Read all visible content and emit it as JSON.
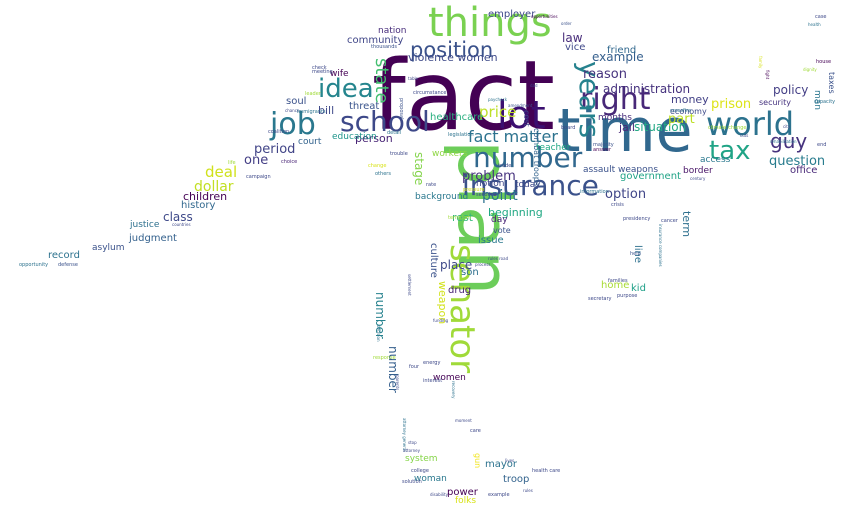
{
  "words": [
    {
      "text": "fact",
      "color": "#440154",
      "rot": 0
    },
    {
      "text": "time",
      "color": "#31688e",
      "rot": 0
    },
    {
      "text": "plan",
      "color": "#6ccd5a",
      "rot": 90
    },
    {
      "text": "things",
      "color": "#7ad151",
      "rot": 0
    },
    {
      "text": "insurance",
      "color": "#3b528b",
      "rot": 0
    },
    {
      "text": "world",
      "color": "#2c728e",
      "rot": 0
    },
    {
      "text": "right",
      "color": "#482878",
      "rot": 0
    },
    {
      "text": "number",
      "color": "#31688e",
      "rot": 0
    },
    {
      "text": "lot",
      "color": "#3b0f70",
      "rot": 0
    },
    {
      "text": "school",
      "color": "#3e4989",
      "rot": 0
    },
    {
      "text": "job",
      "color": "#2a788e",
      "rot": 0
    },
    {
      "text": "years",
      "color": "#26828e",
      "rot": 90
    },
    {
      "text": "tax",
      "color": "#20a486",
      "rot": 0
    },
    {
      "text": "position",
      "color": "#3b528b",
      "rot": 0
    },
    {
      "text": "idea",
      "color": "#25858e",
      "rot": 0
    },
    {
      "text": "senator",
      "color": "#a0da39",
      "rot": 90
    },
    {
      "text": "guy",
      "color": "#46337e",
      "rot": 0
    },
    {
      "text": "state",
      "color": "#44bf70",
      "rot": 90
    },
    {
      "text": "fact matter",
      "color": "#2c728e",
      "rot": 0
    },
    {
      "text": "reason",
      "color": "#46337e",
      "rot": 0
    },
    {
      "text": "deal",
      "color": "#d0e11c",
      "rot": 0
    },
    {
      "text": "dollar",
      "color": "#c2df23",
      "rot": 0
    },
    {
      "text": "place",
      "color": "#3e4989",
      "rot": 0
    },
    {
      "text": "point",
      "color": "#2c728e",
      "rot": 0
    },
    {
      "text": "problem",
      "color": "#46327e",
      "rot": 0
    },
    {
      "text": "option",
      "color": "#404688",
      "rot": 0
    },
    {
      "text": "policy",
      "color": "#433e85",
      "rot": 0
    },
    {
      "text": "question",
      "color": "#287c8e",
      "rot": 0
    },
    {
      "text": "period",
      "color": "#414487",
      "rot": 0
    },
    {
      "text": "class",
      "color": "#3e4989",
      "rot": 0
    },
    {
      "text": "price",
      "color": "#bddf26",
      "rot": 0
    },
    {
      "text": "example",
      "color": "#355f8d",
      "rot": 0
    },
    {
      "text": "situation",
      "color": "#22a884",
      "rot": 0
    },
    {
      "text": "children",
      "color": "#440154",
      "rot": 0
    },
    {
      "text": "one",
      "color": "#433e85",
      "rot": 0
    },
    {
      "text": "person",
      "color": "#482475",
      "rot": 0
    },
    {
      "text": "bill",
      "color": "#3e4989",
      "rot": 0
    },
    {
      "text": "law",
      "color": "#472c7a",
      "rot": 0
    },
    {
      "text": "money",
      "color": "#424086",
      "rot": 0
    },
    {
      "text": "prison",
      "color": "#dde318",
      "rot": 0
    },
    {
      "text": "beginning",
      "color": "#22a884",
      "rot": 0
    },
    {
      "text": "term",
      "color": "#2e6f8e",
      "rot": 90
    },
    {
      "text": "administration",
      "color": "#46327e",
      "rot": 0
    },
    {
      "text": "part",
      "color": "#bddf26",
      "rot": 0
    },
    {
      "text": "history",
      "color": "#31688e",
      "rot": 0
    },
    {
      "text": "office",
      "color": "#482878",
      "rot": 0
    },
    {
      "text": "judgment",
      "color": "#34618d",
      "rot": 0
    },
    {
      "text": "record",
      "color": "#2c728e",
      "rot": 0
    },
    {
      "text": "number",
      "color": "#355f8d",
      "rot": 90
    },
    {
      "text": "number",
      "color": "#26828e",
      "rot": 90
    },
    {
      "text": "community",
      "color": "#404688",
      "rot": 0
    },
    {
      "text": "nation",
      "color": "#472d7b",
      "rot": 0
    },
    {
      "text": "violence women",
      "color": "#3e4a89",
      "rot": 0
    },
    {
      "text": "combat troops",
      "color": "#33638d",
      "rot": 90
    },
    {
      "text": "stage",
      "color": "#84d44b",
      "rot": 90
    },
    {
      "text": "jail",
      "color": "#482677",
      "rot": 0
    },
    {
      "text": "friend",
      "color": "#31688e",
      "rot": 0
    },
    {
      "text": "vice",
      "color": "#3f4889",
      "rot": 0
    },
    {
      "text": "healthcare",
      "color": "#29af7f",
      "rot": 0
    },
    {
      "text": "court",
      "color": "#33638d",
      "rot": 0
    },
    {
      "text": "education",
      "color": "#1f958b",
      "rot": 0
    },
    {
      "text": "threat",
      "color": "#3a548c",
      "rot": 0
    },
    {
      "text": "wife",
      "color": "#440154",
      "rot": 0
    },
    {
      "text": "soul",
      "color": "#3b528b",
      "rot": 0
    },
    {
      "text": "employer",
      "color": "#3e4989",
      "rot": 0
    },
    {
      "text": "man",
      "color": "#2a768e",
      "rot": 90
    },
    {
      "text": "taxes",
      "color": "#3b528b",
      "rot": 90
    },
    {
      "text": "security",
      "color": "#46337f",
      "rot": 0
    },
    {
      "text": "economy",
      "color": "#3e4a89",
      "rot": 0
    },
    {
      "text": "access",
      "color": "#2a788e",
      "rot": 0
    },
    {
      "text": "border",
      "color": "#481467",
      "rot": 0
    },
    {
      "text": "government",
      "color": "#20a386",
      "rot": 0
    },
    {
      "text": "kid",
      "color": "#1fa088",
      "rot": 0
    },
    {
      "text": "home",
      "color": "#a8db34",
      "rot": 0
    },
    {
      "text": "rest",
      "color": "#35b779",
      "rot": 0
    },
    {
      "text": "day",
      "color": "#482475",
      "rot": 0
    },
    {
      "text": "vote",
      "color": "#3b528b",
      "rot": 0
    },
    {
      "text": "issue",
      "color": "#2a788e",
      "rot": 0
    },
    {
      "text": "son",
      "color": "#2d708e",
      "rot": 0
    },
    {
      "text": "drug",
      "color": "#482475",
      "rot": 0
    },
    {
      "text": "weapon",
      "color": "#d2e21b",
      "rot": 90
    },
    {
      "text": "culture",
      "color": "#3b528b",
      "rot": 90
    },
    {
      "text": "line",
      "color": "#2d708e",
      "rot": 90
    },
    {
      "text": "justice",
      "color": "#2d708e",
      "rot": 0
    },
    {
      "text": "asylum",
      "color": "#3b528b",
      "rot": 0
    },
    {
      "text": "background",
      "color": "#2a788e",
      "rot": 0
    },
    {
      "text": "notion",
      "color": "#3e4989",
      "rot": 0
    },
    {
      "text": "today",
      "color": "#3e4989",
      "rot": 0
    },
    {
      "text": "months",
      "color": "#472c7a",
      "rot": 0
    },
    {
      "text": "cost",
      "color": "#3f4788",
      "rot": 90
    },
    {
      "text": "workers",
      "color": "#8fd744",
      "rot": 0
    },
    {
      "text": "teacher",
      "color": "#22a884",
      "rot": 0
    },
    {
      "text": "assault weapons",
      "color": "#3b528b",
      "rot": 0
    },
    {
      "text": "women",
      "color": "#440154",
      "rot": 0
    },
    {
      "text": "system",
      "color": "#86d549",
      "rot": 0
    },
    {
      "text": "mayor",
      "color": "#2c728e",
      "rot": 0
    },
    {
      "text": "woman",
      "color": "#2a788e",
      "rot": 0
    },
    {
      "text": "troop",
      "color": "#33638d",
      "rot": 0
    },
    {
      "text": "power",
      "color": "#440154",
      "rot": 0
    },
    {
      "text": "folks",
      "color": "#d8e219",
      "rot": 0
    },
    {
      "text": "gun",
      "color": "#f1e51d",
      "rot": 90
    },
    {
      "text": "opportunity",
      "color": "#2c728e",
      "rot": 0
    },
    {
      "text": "defense",
      "color": "#3b528b",
      "rot": 0
    },
    {
      "text": "countries",
      "color": "#3e4989",
      "rot": 0
    },
    {
      "text": "campaign",
      "color": "#3e4989",
      "rot": 0
    },
    {
      "text": "life",
      "color": "#a0da39",
      "rot": 0
    },
    {
      "text": "choice",
      "color": "#482475",
      "rot": 0
    },
    {
      "text": "chance",
      "color": "#3e4989",
      "rot": 0
    },
    {
      "text": "coalition",
      "color": "#3e4989",
      "rot": 0
    },
    {
      "text": "immigrants",
      "color": "#2c728e",
      "rot": 0
    },
    {
      "text": "leader",
      "color": "#a0da39",
      "rot": 0
    },
    {
      "text": "check",
      "color": "#3e4989",
      "rot": 0
    },
    {
      "text": "meeting",
      "color": "#3e4989",
      "rot": 0
    },
    {
      "text": "thousands",
      "color": "#3b528b",
      "rot": 0
    },
    {
      "text": "circumstance",
      "color": "#3e4989",
      "rot": 0
    },
    {
      "text": "table",
      "color": "#3e4989",
      "rot": 0
    },
    {
      "text": "proposal",
      "color": "#3b528b",
      "rot": 90
    },
    {
      "text": "detail",
      "color": "#2c728e",
      "rot": 0
    },
    {
      "text": "legislation",
      "color": "#2c728e",
      "rot": 0
    },
    {
      "text": "trouble",
      "color": "#3e4989",
      "rot": 0
    },
    {
      "text": "change",
      "color": "#d8e219",
      "rot": 0
    },
    {
      "text": "others",
      "color": "#2c728e",
      "rot": 0
    },
    {
      "text": "rate",
      "color": "#3e4989",
      "rot": 0
    },
    {
      "text": "terrorism",
      "color": "#a0da39",
      "rot": 0
    },
    {
      "text": "opportunities",
      "color": "#440154",
      "rot": 0
    },
    {
      "text": "order",
      "color": "#3b528b",
      "rot": 0
    },
    {
      "text": "paycheck",
      "color": "#2c728e",
      "rot": 0
    },
    {
      "text": "amendment",
      "color": "#3b528b",
      "rot": 0
    },
    {
      "text": "dad",
      "color": "#3e4989",
      "rot": 0
    },
    {
      "text": "board",
      "color": "#3e4989",
      "rot": 0
    },
    {
      "text": "majority",
      "color": "#3b528b",
      "rot": 0
    },
    {
      "text": "answer",
      "color": "#440154",
      "rot": 0
    },
    {
      "text": "information",
      "color": "#2c728e",
      "rot": 0
    },
    {
      "text": "presidency",
      "color": "#3e4989",
      "rot": 0
    },
    {
      "text": "crisis",
      "color": "#3e4989",
      "rot": 0
    },
    {
      "text": "crossfire",
      "color": "#2c728e",
      "rot": 0
    },
    {
      "text": "climate change",
      "color": "#a0da39",
      "rot": 0
    },
    {
      "text": "cuts",
      "color": "#3e4989",
      "rot": 0
    },
    {
      "text": "rehabilitation",
      "color": "#2c728e",
      "rot": 0
    },
    {
      "text": "city",
      "color": "#3e4989",
      "rot": 0
    },
    {
      "text": "end",
      "color": "#3e4989",
      "rot": 0
    },
    {
      "text": "capacity",
      "color": "#2c728e",
      "rot": 0
    },
    {
      "text": "house",
      "color": "#440154",
      "rot": 0
    },
    {
      "text": "dignity",
      "color": "#a0da39",
      "rot": 0
    },
    {
      "text": "century",
      "color": "#3e4989",
      "rot": 0
    },
    {
      "text": "case",
      "color": "#3e4989",
      "rot": 0
    },
    {
      "text": "health",
      "color": "#2c728e",
      "rot": 0
    },
    {
      "text": "family",
      "color": "#d8e219",
      "rot": 90
    },
    {
      "text": "fight",
      "color": "#440154",
      "rot": 90
    },
    {
      "text": "cancer",
      "color": "#3e4989",
      "rot": 0
    },
    {
      "text": "help",
      "color": "#3b528b",
      "rot": 0
    },
    {
      "text": "families",
      "color": "#3e4989",
      "rot": 0
    },
    {
      "text": "purpose",
      "color": "#3e4989",
      "rot": 0
    },
    {
      "text": "secretary",
      "color": "#3e4989",
      "rot": 0
    },
    {
      "text": "insurance companies",
      "color": "#2c728e",
      "rot": 90
    },
    {
      "text": "rules road",
      "color": "#3e4989",
      "rot": 0
    },
    {
      "text": "process",
      "color": "#3e4989",
      "rot": 0
    },
    {
      "text": "settlement",
      "color": "#3e4989",
      "rot": 90
    },
    {
      "text": "funding",
      "color": "#3e4989",
      "rot": 0
    },
    {
      "text": "decision",
      "color": "#2c728e",
      "rot": 90
    },
    {
      "text": "response",
      "color": "#a0da39",
      "rot": 0
    },
    {
      "text": "energy",
      "color": "#3e4989",
      "rot": 0
    },
    {
      "text": "four",
      "color": "#3e4989",
      "rot": 0
    },
    {
      "text": "interest",
      "color": "#3e4989",
      "rot": 0
    },
    {
      "text": "parents",
      "color": "#3e4989",
      "rot": 90
    },
    {
      "text": "recovery",
      "color": "#2c728e",
      "rot": 90
    },
    {
      "text": "moment",
      "color": "#3e4989",
      "rot": 0
    },
    {
      "text": "care",
      "color": "#3e4989",
      "rot": 0
    },
    {
      "text": "attorney general",
      "color": "#2c728e",
      "rot": 90
    },
    {
      "text": "stop",
      "color": "#3e4989",
      "rot": 0
    },
    {
      "text": "attorney",
      "color": "#3e4989",
      "rot": 0
    },
    {
      "text": "lives",
      "color": "#3e4989",
      "rot": 0
    },
    {
      "text": "health care",
      "color": "#3e4989",
      "rot": 0
    },
    {
      "text": "college",
      "color": "#3e4989",
      "rot": 0
    },
    {
      "text": "solution",
      "color": "#3e4989",
      "rot": 0
    },
    {
      "text": "rules",
      "color": "#3e4989",
      "rot": 0
    },
    {
      "text": "trade",
      "color": "#3e4989",
      "rot": 0
    },
    {
      "text": "seconds",
      "color": "#3e4989",
      "rot": 0
    },
    {
      "text": "pressure",
      "color": "#d8e219",
      "rot": 0
    },
    {
      "text": "disability",
      "color": "#3e4989",
      "rot": 0
    },
    {
      "text": "example",
      "color": "#3e4989",
      "rot": 0
    }
  ]
}
